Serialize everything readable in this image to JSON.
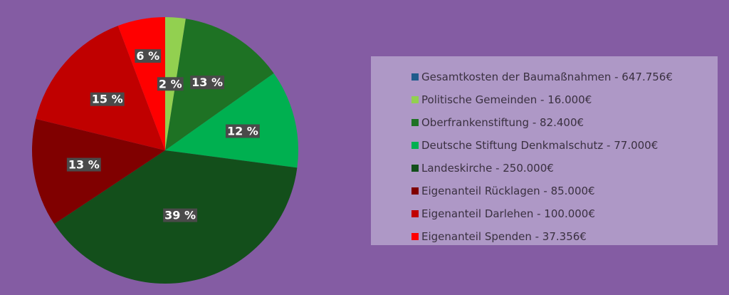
{
  "chart_data": {
    "type": "pie",
    "title": "",
    "start_angle_deg": 0,
    "direction": "clockwise",
    "colors": {
      "background": "#845ca3",
      "legend_background": "#ae98c6",
      "label_background": "#4a4a4a"
    },
    "legend_placement": "right",
    "slices": [
      {
        "label": "Politische Gemeinden - 16.000€",
        "value": 16000,
        "percent_label": "2 %",
        "color": "#92d050"
      },
      {
        "label": "Oberfrankenstiftung - 82.400€",
        "value": 82400,
        "percent_label": "13 %",
        "color": "#1e7224"
      },
      {
        "label": "Deutsche Stiftung Denkmalschutz - 77.000€",
        "value": 77000,
        "percent_label": "12 %",
        "color": "#00b050"
      },
      {
        "label": "Landeskirche - 250.000€",
        "value": 250000,
        "percent_label": "39 %",
        "color": "#134f1b"
      },
      {
        "label": "Eigenanteil Rücklagen - 85.000€",
        "value": 85000,
        "percent_label": "13 %",
        "color": "#800000"
      },
      {
        "label": "Eigenanteil Darlehen - 100.000€",
        "value": 100000,
        "percent_label": "15 %",
        "color": "#c00000"
      },
      {
        "label": "Eigenanteil Spenden - 37.356€",
        "value": 37356,
        "percent_label": "6 %",
        "color": "#ff0000"
      }
    ],
    "legend": [
      {
        "label": "Gesamtkosten der Baumaßnahmen - 647.756€",
        "color": "#1f5c8c"
      },
      {
        "label": "Politische Gemeinden - 16.000€",
        "color": "#92d050"
      },
      {
        "label": "Oberfrankenstiftung - 82.400€",
        "color": "#1e7224"
      },
      {
        "label": "Deutsche Stiftung Denkmalschutz - 77.000€",
        "color": "#00b050"
      },
      {
        "label": "Landeskirche - 250.000€",
        "color": "#134f1b"
      },
      {
        "label": "Eigenanteil Rücklagen - 85.000€",
        "color": "#800000"
      },
      {
        "label": "Eigenanteil Darlehen - 100.000€",
        "color": "#c00000"
      },
      {
        "label": "Eigenanteil Spenden - 37.356€",
        "color": "#ff0000"
      }
    ]
  }
}
